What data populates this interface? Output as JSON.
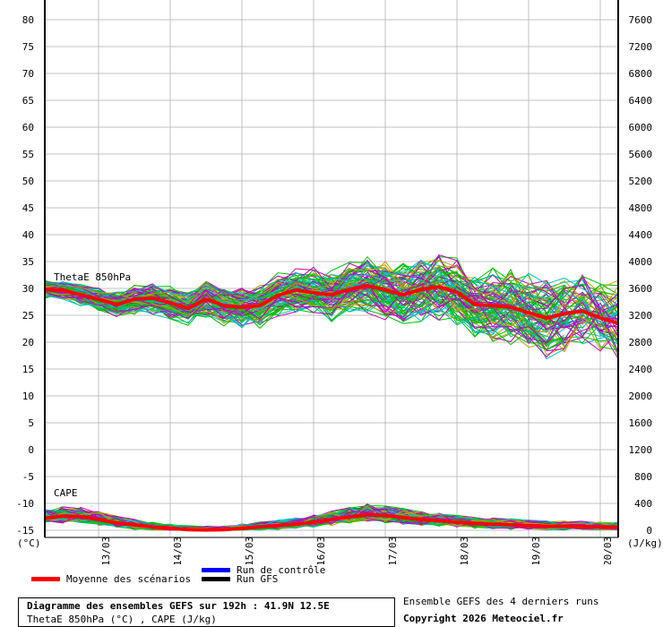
{
  "chart_data": {
    "type": "line",
    "title": "Diagramme des ensembles GEFS sur 192h : 41.9N 12.5E",
    "subtitle": "ThetaE 850hPa (°C) , CAPE (J/kg)",
    "left_axis": {
      "label": "(°C)",
      "range": [
        -15,
        80
      ],
      "ticks": [
        80,
        75,
        70,
        65,
        60,
        55,
        50,
        45,
        40,
        35,
        30,
        25,
        20,
        15,
        10,
        5,
        0,
        -5,
        -10,
        -15
      ]
    },
    "right_axis": {
      "label": "(J/kg)",
      "range": [
        0,
        7600
      ],
      "ticks": [
        7600,
        7200,
        6800,
        6400,
        6000,
        5600,
        5200,
        4800,
        4400,
        4000,
        3600,
        3200,
        2800,
        2400,
        2000,
        1600,
        1200,
        800,
        400,
        0
      ]
    },
    "x_axis": {
      "range_hours": [
        0,
        192
      ],
      "step_hours": 6,
      "date_ticks": [
        "13/03",
        "14/03",
        "15/03",
        "16/03",
        "17/03",
        "18/03",
        "19/03",
        "20/03"
      ],
      "first_tick_hour": 18
    },
    "panels": {
      "thetae": "ThetaE 850hPa",
      "cape": "CAPE"
    },
    "series": [
      {
        "name": "Moyenne des scénarios (ThetaE)",
        "color": "#ff0000",
        "values": [
          29.8,
          29.7,
          28.8,
          28,
          27,
          28,
          28.2,
          27.3,
          26.3,
          28,
          26.8,
          26.5,
          26.8,
          28.7,
          29.7,
          29.2,
          28.8,
          29.8,
          30.5,
          29.7,
          28.8,
          29.8,
          30.3,
          29.3,
          27,
          26.8,
          26.5,
          25.5,
          24.5,
          25.3,
          25.8,
          24.5,
          23.5
        ]
      },
      {
        "name": "Moyenne des scénarios (CAPE)",
        "color": "#ff0000",
        "values": [
          180,
          210,
          200,
          160,
          110,
          80,
          50,
          30,
          10,
          5,
          10,
          30,
          50,
          70,
          90,
          120,
          160,
          200,
          230,
          220,
          190,
          160,
          140,
          120,
          100,
          90,
          80,
          70,
          60,
          60,
          55,
          50,
          50
        ]
      }
    ],
    "ensemble_colors": [
      "#00c000",
      "#c000c0",
      "#00c0c0",
      "#c0a000"
    ]
  },
  "legend": {
    "mean": "Moyenne des scénarios",
    "control": "Run de contrôle",
    "gfs": "Run GFS",
    "mean_color": "#ff0000",
    "control_color": "#0000ff",
    "gfs_color": "#000000"
  },
  "footer": {
    "title": "Diagramme des ensembles GEFS sur 192h : 41.9N 12.5E",
    "subtitle": "ThetaE 850hPa (°C) , CAPE (J/kg)",
    "runs": "Ensemble GEFS des 4 derniers runs",
    "copyright": "Copyright 2026 Meteociel.fr"
  }
}
